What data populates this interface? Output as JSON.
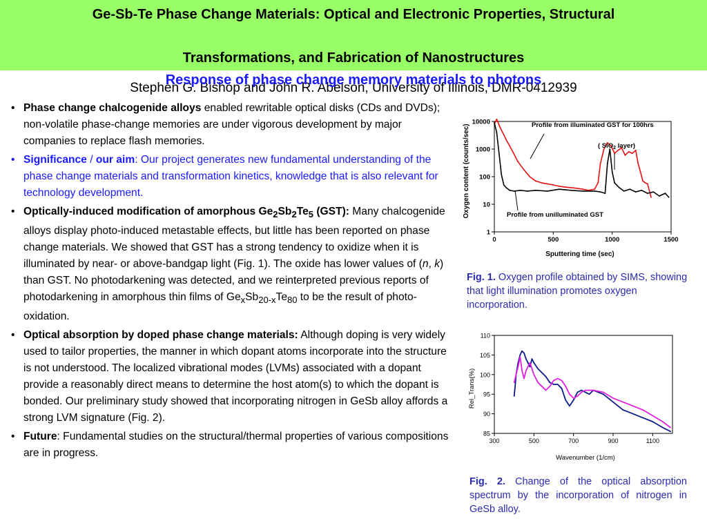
{
  "header": {
    "title_line1": "Ge-Sb-Te Phase Change Materials: Optical and Electronic Properties, Structural",
    "title_line2": "Transformations, and Fabrication of Nanostructures",
    "authors": "Stephen G. Bishop and John R. Abelson, University of Illinois, DMR-0412939",
    "subtitle": "Response of phase change memory materials to photons",
    "background_color": "#99ff66",
    "subtitle_color": "#1a1aff"
  },
  "bullets": {
    "b1_bold": "Phase change chalcogenide alloys",
    "b1_text": " enabled rewritable optical disks (CDs and DVDs); non-volatile phase-change memories are under vigorous development by major companies to replace flash memories.",
    "b2_bold1": "Significance",
    "b2_sep": " / ",
    "b2_bold2": "our aim",
    "b2_text": ": Our project generates new fundamental understanding of the phase change materials and transformation kinetics, knowledge that is also relevant for technology development.",
    "b3_bold_a": "Optically-induced modification of amorphous Ge",
    "b3_sub1": "2",
    "b3_bold_b": "Sb",
    "b3_sub2": "2",
    "b3_bold_c": "Te",
    "b3_sub3": "5",
    "b3_bold_d": " (GST):",
    "b3_text_a": " Many chalcogenide alloys display photo-induced metastable effects, but little has been reported on phase change materials.  We showed that GST has a strong tendency to oxidize when it is illuminated by near- or above-bandgap light (Fig. 1).  The oxide has lower values of (",
    "b3_n": "n",
    "b3_comma": ", ",
    "b3_k": "k",
    "b3_text_b": ") than GST.  No photodarkening was detected, and we reinterpreted previous reports of photodarkening in amorphous thin films of Ge",
    "b3_sub_x": "x",
    "b3_sb": "Sb",
    "b3_sub_20x": "20-x",
    "b3_te": "Te",
    "b3_sub_80": "80",
    "b3_text_c": " to be the result of photo-oxidation.",
    "b4_bold": "Optical absorption by doped phase change materials:",
    "b4_text": "  Although doping is very widely used to tailor properties, the manner in which dopant atoms incorporate into the structure is not understood.  The localized vibrational modes (LVMs) associated with a dopant provide a reasonably direct means to determine the host atom(s) to which the dopant is bonded. Our preliminary study showed that incorporating nitrogen in GeSb alloy affords a strong LVM signature (Fig. 2).",
    "b5_bold": "Future",
    "b5_text": ": Fundamental studies on the structural/thermal properties of various compositions are in progress."
  },
  "captions": {
    "fig1_label": "Fig. 1.",
    "fig1_text": " Oxygen profile obtained by SIMS, showing that light illumination promotes oxygen incorporation.",
    "fig2_label": "Fig. 2.",
    "fig2_text": " Change of the optical absorption spectrum by the incorporation of nitrogen in GeSb alloy.",
    "color": "#2a2ab0"
  },
  "chart_data": [
    {
      "type": "line",
      "title": "",
      "xlabel": "Sputtering time (sec)",
      "ylabel": "Oxygen content (counts/sec)",
      "xlim": [
        0,
        1500
      ],
      "ylim": [
        1,
        10000
      ],
      "y_scale": "log",
      "x_ticks": [
        "0",
        "500",
        "1000",
        "1500"
      ],
      "y_ticks": [
        "1",
        "10",
        "100",
        "1000",
        "10000"
      ],
      "annotations": [
        "Profile from illuminated GST for 100hrs",
        "Profile from unilluminated GST"
      ],
      "sio2_label_a": "( SiO",
      "sio2_label_sub": "2",
      "sio2_label_b": " layer)",
      "series": [
        {
          "color": "#e81010",
          "x": [
            0,
            20,
            50,
            100,
            150,
            200,
            250,
            300,
            350,
            400,
            450,
            500,
            550,
            600,
            650,
            700,
            750,
            800,
            850,
            880,
            900,
            930,
            960,
            990,
            1020,
            1050,
            1080,
            1110,
            1140,
            1170,
            1200,
            1220,
            1240,
            1260,
            1280,
            1300,
            1330
          ],
          "y": [
            8000,
            12000,
            6000,
            2200,
            900,
            350,
            180,
            100,
            70,
            60,
            55,
            50,
            45,
            42,
            40,
            38,
            35,
            32,
            35,
            60,
            300,
            1000,
            1700,
            1300,
            700,
            900,
            1100,
            600,
            800,
            700,
            900,
            300,
            150,
            70,
            60,
            55,
            18
          ]
        },
        {
          "color": "#000000",
          "x": [
            0,
            20,
            40,
            60,
            80,
            100,
            130,
            170,
            220,
            280,
            350,
            450,
            550,
            650,
            750,
            850,
            900,
            940,
            960,
            980,
            1000,
            1020,
            1060,
            1100,
            1150,
            1200,
            1250,
            1300,
            1350,
            1400,
            1450,
            1480
          ],
          "y": [
            9000,
            4000,
            700,
            120,
            50,
            40,
            32,
            30,
            32,
            30,
            32,
            30,
            35,
            32,
            30,
            30,
            28,
            25,
            300,
            1000,
            150,
            60,
            40,
            30,
            35,
            28,
            32,
            25,
            28,
            20,
            25,
            18
          ]
        }
      ]
    },
    {
      "type": "line",
      "title": "",
      "xlabel": "Wavenumber (1/cm)",
      "ylabel": "Rel_Trans(%)",
      "xlim": [
        300,
        1200
      ],
      "ylim": [
        85,
        110
      ],
      "x_ticks": [
        "300",
        "500",
        "700",
        "900",
        "1100"
      ],
      "y_ticks": [
        "85",
        "90",
        "95",
        "100",
        "105",
        "110"
      ],
      "series": [
        {
          "color": "#0a1a8a",
          "x": [
            400,
            405,
            410,
            420,
            430,
            440,
            450,
            460,
            470,
            480,
            490,
            500,
            520,
            540,
            560,
            580,
            600,
            620,
            640,
            660,
            680,
            700,
            720,
            740,
            760,
            780,
            800,
            850,
            900,
            950,
            1000,
            1050,
            1100,
            1150,
            1190
          ],
          "y": [
            94.5,
            97,
            100,
            103,
            105,
            106,
            105.5,
            104,
            103,
            102,
            104,
            103,
            101.5,
            100.5,
            99.5,
            98,
            97.5,
            97.5,
            96.5,
            93.5,
            92,
            93.5,
            95.5,
            96,
            95.5,
            95,
            96,
            95,
            93,
            91,
            90,
            89,
            88,
            86.5,
            85.5
          ]
        },
        {
          "color": "#e020e0",
          "x": [
            400,
            410,
            420,
            430,
            440,
            450,
            460,
            470,
            480,
            500,
            520,
            540,
            560,
            580,
            600,
            620,
            640,
            660,
            680,
            700,
            720,
            740,
            760,
            780,
            800,
            850,
            900,
            950,
            1000,
            1050,
            1100,
            1150,
            1190
          ],
          "y": [
            98,
            100,
            102,
            104.5,
            101,
            99,
            101,
            102,
            103,
            100,
            98,
            97,
            96,
            97,
            98.5,
            99,
            98.5,
            97,
            95,
            94,
            94.5,
            95.5,
            96,
            96,
            96,
            95.5,
            94,
            93,
            92,
            91,
            89.5,
            88,
            86.5
          ]
        }
      ]
    }
  ]
}
